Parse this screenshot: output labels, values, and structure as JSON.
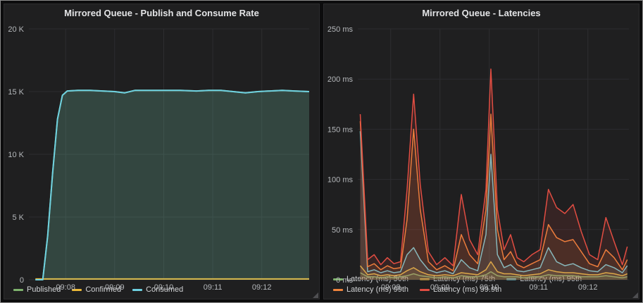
{
  "grid_color": "#2d2d30",
  "axis_label_color": "#b5b8bb",
  "panel_bg": "#1f1f20",
  "chart_data": [
    {
      "type": "area",
      "name": "publish-consume-rate",
      "title": "Mirrored Queue - Publish and Consume Rate",
      "xlim": [
        435,
        778
      ],
      "ylim": [
        0,
        20000
      ],
      "fill_opacity": 0.13,
      "line_width": 2,
      "x_ticks": [
        {
          "value": 480,
          "label": "09:08"
        },
        {
          "value": 540,
          "label": "09:09"
        },
        {
          "value": 600,
          "label": "09:10"
        },
        {
          "value": 660,
          "label": "09:11"
        },
        {
          "value": 720,
          "label": "09:12"
        }
      ],
      "y_ticks": [
        {
          "value": 0,
          "label": "0"
        },
        {
          "value": 5000,
          "label": "5 K"
        },
        {
          "value": 10000,
          "label": "10 K"
        },
        {
          "value": 15000,
          "label": "15 K"
        },
        {
          "value": 20000,
          "label": "20 K"
        }
      ],
      "x": [
        443,
        452,
        458,
        464,
        470,
        476,
        482,
        495,
        510,
        525,
        540,
        552,
        565,
        580,
        600,
        620,
        640,
        655,
        670,
        685,
        700,
        715,
        730,
        745,
        760,
        778
      ],
      "series": [
        {
          "name": "Published",
          "color": "#7eb26d",
          "values": [
            0,
            0,
            3500,
            8500,
            12800,
            14700,
            15050,
            15100,
            15100,
            15050,
            15000,
            14900,
            15100,
            15100,
            15100,
            15100,
            15050,
            15100,
            15100,
            15000,
            14900,
            15000,
            15050,
            15100,
            15050,
            15000
          ]
        },
        {
          "name": "Confirmed",
          "color": "#eab839",
          "values": [
            60,
            60,
            60,
            60,
            60,
            60,
            60,
            60,
            60,
            60,
            60,
            60,
            60,
            60,
            60,
            60,
            60,
            60,
            60,
            60,
            60,
            60,
            60,
            60,
            60,
            60
          ]
        },
        {
          "name": "Consumed",
          "color": "#6ed0e0",
          "values": [
            0,
            0,
            3500,
            8500,
            12800,
            14700,
            15050,
            15100,
            15100,
            15050,
            15000,
            14900,
            15100,
            15100,
            15100,
            15100,
            15050,
            15100,
            15100,
            15000,
            14900,
            15000,
            15050,
            15100,
            15050,
            15000
          ]
        }
      ]
    },
    {
      "type": "area",
      "name": "latencies",
      "title": "Mirrored Queue - Latencies",
      "xlim": [
        440,
        770
      ],
      "ylim": [
        0,
        250
      ],
      "fill_opacity": 0.12,
      "line_width": 1.5,
      "x_ticks": [
        {
          "value": 480,
          "label": "09:08"
        },
        {
          "value": 540,
          "label": "09:09"
        },
        {
          "value": 600,
          "label": "09:10"
        },
        {
          "value": 660,
          "label": "09:11"
        },
        {
          "value": 720,
          "label": "09:12"
        }
      ],
      "y_ticks": [
        {
          "value": 0,
          "label": "0 ms"
        },
        {
          "value": 50,
          "label": "50 ms"
        },
        {
          "value": 100,
          "label": "100 ms"
        },
        {
          "value": 150,
          "label": "150 ms"
        },
        {
          "value": 200,
          "label": "200 ms"
        },
        {
          "value": 250,
          "label": "250 ms"
        }
      ],
      "x": [
        443,
        452,
        460,
        468,
        476,
        484,
        492,
        500,
        508,
        516,
        526,
        536,
        546,
        556,
        566,
        576,
        586,
        596,
        602,
        610,
        618,
        626,
        634,
        642,
        652,
        662,
        672,
        682,
        692,
        702,
        712,
        722,
        732,
        742,
        752,
        762,
        768
      ],
      "series": [
        {
          "name": "Latency (ms) 50th",
          "color": "#7eb26d",
          "values": [
            7,
            3,
            3,
            2,
            3,
            2,
            3,
            4,
            6,
            4,
            3,
            2,
            3,
            2,
            4,
            3,
            3,
            5,
            8,
            4,
            3,
            3,
            3,
            2,
            3,
            3,
            5,
            4,
            4,
            4,
            3,
            3,
            3,
            4,
            3,
            2,
            3
          ]
        },
        {
          "name": "Latency (ms) 75th",
          "color": "#eab839",
          "values": [
            14,
            5,
            6,
            4,
            5,
            4,
            5,
            9,
            12,
            8,
            5,
            4,
            5,
            4,
            7,
            6,
            5,
            10,
            18,
            8,
            6,
            6,
            5,
            4,
            5,
            6,
            10,
            8,
            7,
            7,
            6,
            5,
            5,
            7,
            6,
            4,
            6
          ]
        },
        {
          "name": "Latency (ms) 95th",
          "color": "#6ed0e0",
          "values": [
            148,
            8,
            10,
            7,
            9,
            7,
            8,
            25,
            32,
            20,
            10,
            7,
            9,
            6,
            20,
            12,
            9,
            45,
            125,
            25,
            12,
            15,
            9,
            8,
            10,
            12,
            32,
            18,
            14,
            16,
            12,
            9,
            8,
            15,
            12,
            7,
            14
          ]
        },
        {
          "name": "Latency (ms) 99th",
          "color": "#ef843c",
          "values": [
            158,
            13,
            16,
            10,
            14,
            11,
            12,
            60,
            150,
            70,
            18,
            10,
            14,
            9,
            45,
            25,
            16,
            70,
            165,
            50,
            20,
            28,
            15,
            12,
            16,
            20,
            55,
            42,
            38,
            40,
            28,
            16,
            13,
            30,
            22,
            10,
            20
          ]
        },
        {
          "name": "Latency (ms) 99.9th",
          "color": "#e24d42",
          "values": [
            165,
            20,
            25,
            15,
            22,
            16,
            18,
            90,
            185,
            95,
            28,
            15,
            22,
            14,
            85,
            40,
            25,
            90,
            210,
            70,
            30,
            45,
            22,
            18,
            25,
            30,
            90,
            72,
            66,
            75,
            48,
            25,
            20,
            62,
            38,
            15,
            33
          ]
        }
      ]
    }
  ]
}
